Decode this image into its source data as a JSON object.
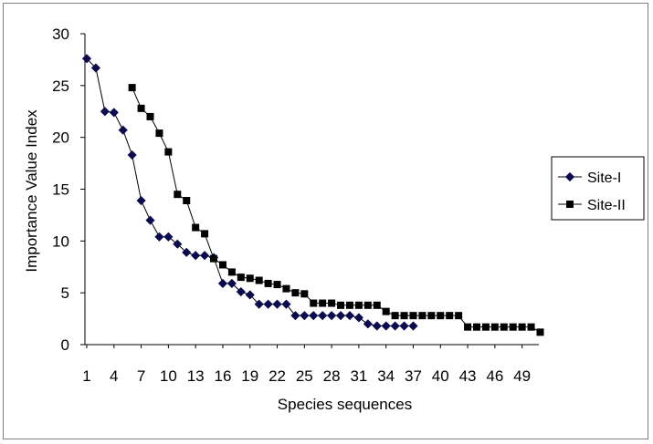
{
  "chart_data": {
    "type": "line",
    "xlabel": "Species sequences",
    "ylabel": "Importance Value Index",
    "ylim": [
      0,
      30
    ],
    "yticks": [
      0,
      5,
      10,
      15,
      20,
      25,
      30
    ],
    "xlim": [
      1,
      51
    ],
    "xticks": [
      1,
      4,
      7,
      10,
      13,
      16,
      19,
      22,
      25,
      28,
      31,
      34,
      37,
      40,
      43,
      46,
      49
    ],
    "grid": false,
    "legend_position": "right",
    "series": [
      {
        "name": "Site-I",
        "marker": "diamond",
        "color": "#0a0a4f",
        "x": [
          1,
          2,
          3,
          4,
          5,
          6,
          7,
          8,
          9,
          10,
          11,
          12,
          13,
          14,
          15,
          16,
          17,
          18,
          19,
          20,
          21,
          22,
          23,
          24,
          25,
          26,
          27,
          28,
          29,
          30,
          31,
          32,
          33,
          34,
          35,
          36,
          37
        ],
        "values": [
          27.6,
          26.7,
          22.5,
          22.4,
          20.7,
          18.3,
          13.9,
          12.0,
          10.4,
          10.4,
          9.7,
          8.9,
          8.6,
          8.6,
          8.4,
          5.9,
          5.9,
          5.1,
          4.8,
          3.9,
          3.9,
          3.9,
          3.9,
          2.8,
          2.8,
          2.8,
          2.8,
          2.8,
          2.8,
          2.8,
          2.6,
          2.0,
          1.8,
          1.8,
          1.8,
          1.8,
          1.8
        ]
      },
      {
        "name": "Site-II",
        "marker": "square",
        "color": "#000000",
        "x": [
          6,
          7,
          8,
          9,
          10,
          11,
          12,
          13,
          14,
          15,
          16,
          17,
          18,
          19,
          20,
          21,
          22,
          23,
          24,
          25,
          26,
          27,
          28,
          29,
          30,
          31,
          32,
          33,
          34,
          35,
          36,
          37,
          38,
          39,
          40,
          41,
          42,
          43,
          44,
          45,
          46,
          47,
          48,
          49,
          50,
          51
        ],
        "values": [
          24.8,
          22.8,
          22.0,
          20.4,
          18.6,
          14.5,
          13.9,
          11.3,
          10.7,
          8.3,
          7.7,
          7.0,
          6.5,
          6.4,
          6.2,
          5.9,
          5.8,
          5.4,
          5.0,
          4.9,
          4.0,
          4.0,
          4.0,
          3.8,
          3.8,
          3.8,
          3.8,
          3.8,
          3.2,
          2.8,
          2.8,
          2.8,
          2.8,
          2.8,
          2.8,
          2.8,
          2.8,
          1.7,
          1.7,
          1.7,
          1.7,
          1.7,
          1.7,
          1.7,
          1.7,
          1.2
        ]
      }
    ]
  }
}
